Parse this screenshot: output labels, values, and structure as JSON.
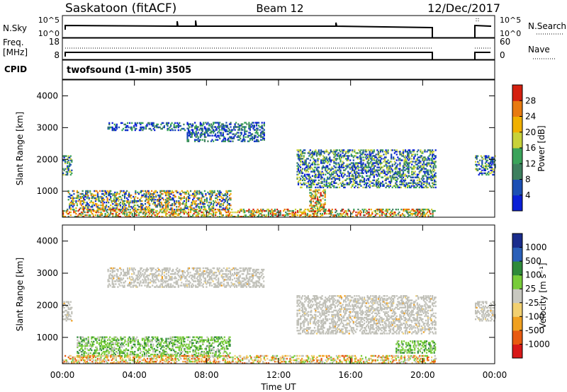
{
  "header": {
    "station": "Saskatoon (fitACF)",
    "beam": "Beam 12",
    "date": "12/Dec/2017"
  },
  "sky_panel": {
    "left_label": "N.Sky",
    "left_top": "10^5",
    "left_bottom": "10^0",
    "right_top": "10^5",
    "right_bottom": "10^0",
    "right_label": "N.Search"
  },
  "freq_panel": {
    "left_label_1": "Freq.",
    "left_label_2": "[MHz]",
    "left_top": "18",
    "left_bottom": "8",
    "right_top": "60",
    "right_bottom": "0",
    "right_label": "Nave"
  },
  "cpid_panel": {
    "left_label": "CPID",
    "program": "twofsound (1-min) 3505"
  },
  "power_panel": {
    "ylabel": "Slant Range [km]",
    "yticks": [
      "4000",
      "3000",
      "2000",
      "1000"
    ],
    "colorbar_title": "Power [dB]",
    "colorbar_ticks": [
      "28",
      "24",
      "20",
      "16",
      "12",
      "8",
      "4"
    ]
  },
  "velocity_panel": {
    "ylabel": "Slant Range [km]",
    "yticks": [
      "4000",
      "3000",
      "2000",
      "1000"
    ],
    "colorbar_title": "Velocity [m s⁻¹]",
    "colorbar_ticks": [
      "1000",
      "500",
      "100",
      "25",
      "-25",
      "-100",
      "-500",
      "-1000"
    ]
  },
  "xaxis": {
    "label": "Time UT",
    "ticks": [
      "00:00",
      "04:00",
      "08:00",
      "12:00",
      "16:00",
      "20:00",
      "00:00"
    ]
  },
  "colors": {
    "power_scale": [
      "#0a1fd6",
      "#1c4fb4",
      "#3d7f5e",
      "#3aa35a",
      "#c8d23a",
      "#f0b000",
      "#e87a10",
      "#d42010"
    ],
    "velocity_scale": [
      "#d81818",
      "#e85a10",
      "#f0a020",
      "#f2d070",
      "#c8c8c0",
      "#78cc3a",
      "#2e8a3a",
      "#2a5fb8",
      "#1a2c8c"
    ],
    "ground_scatter": "#c0c0b8"
  },
  "chart_data": {
    "type": "heatmap",
    "x_unit": "hours UT",
    "xlim": [
      0,
      24
    ],
    "ylim": [
      180,
      4500
    ],
    "data_gap_hours": [
      [
        20.75,
        22.9
      ]
    ],
    "power_patches": [
      {
        "t": [
          0.0,
          0.5
        ],
        "r": [
          1500,
          2100
        ],
        "level": "mixed"
      },
      {
        "t": [
          2.5,
          6.8
        ],
        "r": [
          2900,
          3150
        ],
        "level": "low-mid"
      },
      {
        "t": [
          6.9,
          11.2
        ],
        "r": [
          2550,
          3150
        ],
        "level": "low-mid"
      },
      {
        "t": [
          0.3,
          9.3
        ],
        "r": [
          400,
          1000
        ],
        "level": "mid-high"
      },
      {
        "t": [
          0.0,
          20.7
        ],
        "r": [
          180,
          450
        ],
        "level": "high"
      },
      {
        "t": [
          13.7,
          14.6
        ],
        "r": [
          300,
          1050
        ],
        "level": "high"
      },
      {
        "t": [
          13.0,
          20.7
        ],
        "r": [
          1100,
          2300
        ],
        "level": "mixed"
      },
      {
        "t": [
          22.9,
          24.0
        ],
        "r": [
          1500,
          2100
        ],
        "level": "mixed"
      }
    ],
    "velocity_patches": [
      {
        "t": [
          0.0,
          0.5
        ],
        "r": [
          1500,
          2100
        ],
        "class": "ground"
      },
      {
        "t": [
          2.5,
          11.2
        ],
        "r": [
          2550,
          3150
        ],
        "class": "ground"
      },
      {
        "t": [
          0.8,
          9.3
        ],
        "r": [
          400,
          1000
        ],
        "class": "positive"
      },
      {
        "t": [
          0.0,
          20.7
        ],
        "r": [
          180,
          450
        ],
        "class": "mixed"
      },
      {
        "t": [
          13.0,
          20.7
        ],
        "r": [
          1100,
          2300
        ],
        "class": "ground"
      },
      {
        "t": [
          18.5,
          20.7
        ],
        "r": [
          500,
          900
        ],
        "class": "positive"
      },
      {
        "t": [
          22.9,
          24.0
        ],
        "r": [
          1500,
          2100
        ],
        "class": "ground"
      }
    ]
  }
}
